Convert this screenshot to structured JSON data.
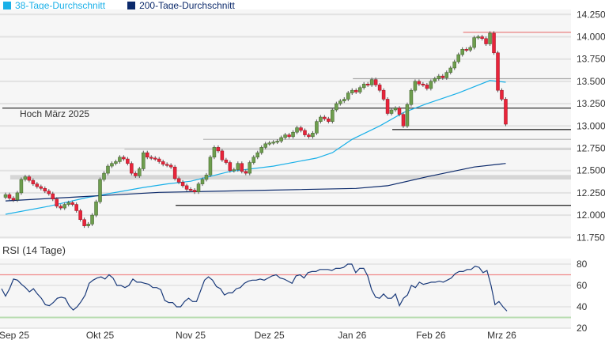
{
  "legend": [
    {
      "label": "38-Tage-Durchschnitt",
      "color": "#1ab0e8"
    },
    {
      "label": "200-Tage-Durchschnitt",
      "color": "#0c2a6b"
    }
  ],
  "chart_data": [
    {
      "type": "candlestick",
      "title": "",
      "ylim": [
        11750,
        14250
      ],
      "y_ticks": [
        "14.250",
        "14.000",
        "13.750",
        "13.500",
        "13.250",
        "13.000",
        "12.750",
        "12.500",
        "12.250",
        "12.000",
        "11.750"
      ],
      "y_tick_values": [
        14250,
        14000,
        13750,
        13500,
        13250,
        13000,
        12750,
        12500,
        12250,
        12000,
        11750
      ],
      "x_ticks": [
        {
          "label": "Sep 25",
          "index": 2
        },
        {
          "label": "Okt 25",
          "index": 24
        },
        {
          "label": "Nov 25",
          "index": 47
        },
        {
          "label": "Dez 25",
          "index": 67
        },
        {
          "label": "Jan 26",
          "index": 88
        },
        {
          "label": "Feb 26",
          "index": 108
        },
        {
          "label": "Mrz 26",
          "index": 126
        }
      ],
      "first_open": 12200,
      "close": [
        12230,
        12190,
        12170,
        12250,
        12400,
        12430,
        12390,
        12350,
        12320,
        12300,
        12270,
        12240,
        12180,
        12100,
        12080,
        12120,
        12140,
        12120,
        12050,
        11950,
        11880,
        11900,
        12000,
        12150,
        12400,
        12470,
        12550,
        12580,
        12600,
        12650,
        12630,
        12580,
        12470,
        12440,
        12520,
        12700,
        12650,
        12640,
        12630,
        12600,
        12570,
        12560,
        12540,
        12410,
        12370,
        12330,
        12290,
        12280,
        12260,
        12350,
        12400,
        12450,
        12650,
        12760,
        12720,
        12620,
        12590,
        12500,
        12510,
        12580,
        12490,
        12470,
        12590,
        12650,
        12700,
        12760,
        12800,
        12810,
        12820,
        12830,
        12870,
        12900,
        12880,
        12930,
        12980,
        12950,
        12900,
        12880,
        12920,
        13050,
        13100,
        13080,
        13050,
        13180,
        13250,
        13280,
        13300,
        13370,
        13400,
        13380,
        13430,
        13470,
        13460,
        13520,
        13460,
        13400,
        13300,
        13140,
        13180,
        13200,
        13130,
        13000,
        13240,
        13400,
        13500,
        13470,
        13460,
        13420,
        13500,
        13530,
        13560,
        13540,
        13600,
        13650,
        13720,
        13800,
        13860,
        13850,
        13880,
        13990,
        14000,
        13980,
        13920,
        14040,
        13820,
        13400,
        13300,
        13020
      ],
      "series": [
        {
          "name": "38-Tage-Durchschnitt",
          "color": "#1ab0e8",
          "points": [
            [
              0,
              12010
            ],
            [
              11,
              12100
            ],
            [
              21,
              12200
            ],
            [
              35,
              12310
            ],
            [
              41,
              12350
            ],
            [
              47,
              12380
            ],
            [
              57,
              12490
            ],
            [
              68,
              12550
            ],
            [
              79,
              12640
            ],
            [
              83,
              12700
            ],
            [
              88,
              12850
            ],
            [
              95,
              13000
            ],
            [
              101,
              13150
            ],
            [
              107,
              13250
            ],
            [
              115,
              13370
            ],
            [
              123,
              13510
            ],
            [
              127,
              13490
            ]
          ]
        },
        {
          "name": "200-Tage-Durchschnitt",
          "color": "#0c2a6b",
          "points": [
            [
              0,
              12160
            ],
            [
              39,
              12255
            ],
            [
              67,
              12280
            ],
            [
              89,
              12300
            ],
            [
              97,
              12330
            ],
            [
              107,
              12430
            ],
            [
              119,
              12540
            ],
            [
              127,
              12580
            ]
          ]
        }
      ],
      "levels": [
        {
          "value": 14050,
          "from_index": 117,
          "color": "#e88080"
        },
        {
          "value": 13530,
          "from_index": 89,
          "color": "#aaaaaa"
        },
        {
          "value": 13200,
          "from_index": 0,
          "color": "#333333",
          "label": "Hoch März 2025"
        },
        {
          "value": 12960,
          "from_index": 99,
          "color": "#333333"
        },
        {
          "value": 12850,
          "from_index": 51,
          "color": "#bbbbbb"
        },
        {
          "value": 12740,
          "from_index": 31,
          "color": "#bbbbbb"
        },
        {
          "value": 12110,
          "from_index": 44,
          "color": "#333333"
        }
      ],
      "zone": {
        "from": 12400,
        "to": 12450,
        "from_index": 2,
        "color": "#d6d6d6"
      }
    },
    {
      "type": "line",
      "title": "RSI (14 Tage)",
      "ylim": [
        20,
        85
      ],
      "y_ticks": [
        "80",
        "60",
        "40",
        "20"
      ],
      "y_tick_values": [
        80,
        60,
        40,
        20
      ],
      "overbought": 70,
      "oversold": 30,
      "values": [
        57,
        50,
        57,
        66,
        65,
        61,
        58,
        54,
        57,
        52,
        48,
        42,
        41,
        44,
        48,
        49,
        48,
        41,
        37,
        40,
        45,
        51,
        62,
        65,
        67,
        68,
        66,
        70,
        67,
        60,
        60,
        58,
        60,
        66,
        63,
        63,
        62,
        61,
        58,
        58,
        56,
        46,
        44,
        44,
        40,
        40,
        45,
        48,
        45,
        45,
        55,
        65,
        68,
        65,
        59,
        57,
        51,
        53,
        53,
        57,
        58,
        62,
        64,
        65,
        65,
        66,
        65,
        67,
        69,
        70,
        67,
        66,
        64,
        62,
        69,
        70,
        67,
        72,
        73,
        73,
        75,
        75,
        75,
        74,
        76,
        76,
        77,
        80,
        80,
        72,
        76,
        76,
        69,
        56,
        49,
        48,
        52,
        48,
        48,
        52,
        41,
        48,
        51,
        60,
        58,
        63,
        61,
        62,
        63,
        63,
        64,
        63,
        65,
        67,
        71,
        73,
        73,
        75,
        75,
        78,
        77,
        72,
        74,
        60,
        42,
        45,
        40,
        36
      ]
    }
  ]
}
